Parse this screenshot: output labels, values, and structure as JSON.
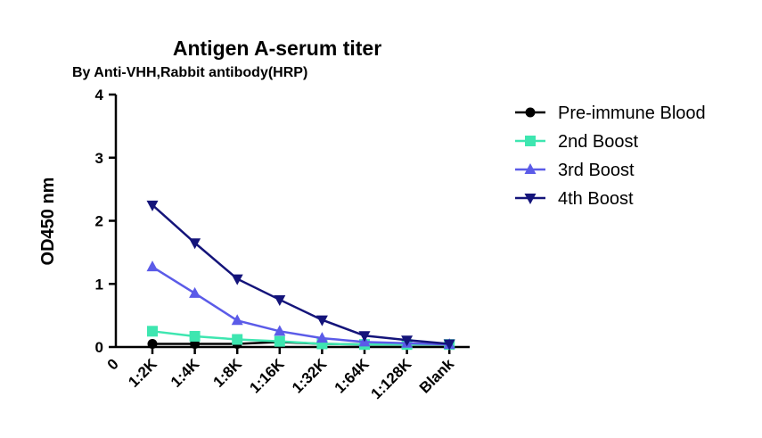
{
  "chart_data": {
    "type": "line",
    "title": "Antigen A-serum titer",
    "subtitle": "By Anti-VHH,Rabbit antibody(HRP)",
    "xlabel": "",
    "ylabel": "OD450 nm",
    "x_origin_label": "0",
    "categories": [
      "1:2K",
      "1:4K",
      "1:8K",
      "1:16K",
      "1:32K",
      "1:64K",
      "1:128K",
      "Blank"
    ],
    "ylim": [
      0,
      4
    ],
    "yticks": [
      0,
      1,
      2,
      3,
      4
    ],
    "grid": false,
    "legend_position": "right",
    "series": [
      {
        "name": "Pre-immune Blood",
        "marker": "circle",
        "color": "#000000",
        "values": [
          0.05,
          0.05,
          0.05,
          0.08,
          0.05,
          0.04,
          0.04,
          0.04
        ]
      },
      {
        "name": "2nd Boost",
        "marker": "square",
        "color": "#3ee6b0",
        "values": [
          0.25,
          0.17,
          0.12,
          0.09,
          0.05,
          0.04,
          0.04,
          0.04
        ]
      },
      {
        "name": "3rd Boost",
        "marker": "triangle-up",
        "color": "#5b5be8",
        "values": [
          1.27,
          0.85,
          0.42,
          0.25,
          0.14,
          0.08,
          0.06,
          0.04
        ]
      },
      {
        "name": "4th Boost",
        "marker": "triangle-down",
        "color": "#14147a",
        "values": [
          2.25,
          1.65,
          1.08,
          0.75,
          0.43,
          0.18,
          0.11,
          0.05
        ]
      }
    ]
  }
}
